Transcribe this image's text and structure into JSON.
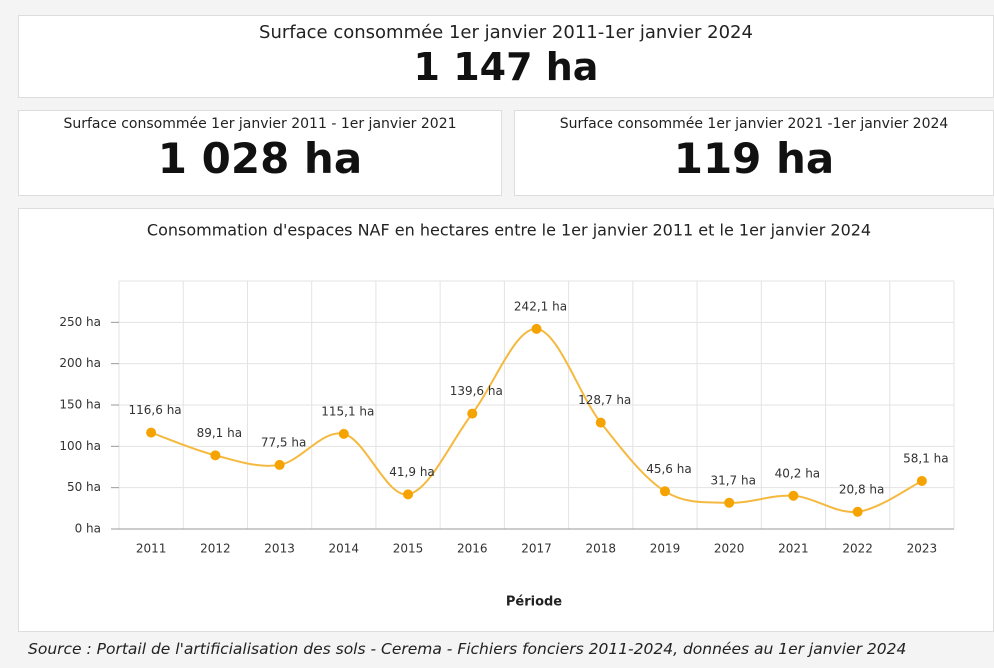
{
  "kpis": [
    {
      "label": "Surface consommée 1er janvier 2011-1er janvier 2024",
      "value": "1 147 ha"
    },
    {
      "label": "Surface consommée 1er janvier 2011 - 1er janvier 2021",
      "value": "1 028 ha"
    },
    {
      "label": "Surface consommée 1er janvier 2021 -1er janvier 2024",
      "value": "119 ha"
    }
  ],
  "chart_data": {
    "type": "line",
    "title": "Consommation d'espaces NAF en hectares entre le 1er janvier 2011 et le 1er janvier 2024",
    "x_label": "Période",
    "categories": [
      "2011",
      "2012",
      "2013",
      "2014",
      "2015",
      "2016",
      "2017",
      "2018",
      "2019",
      "2020",
      "2021",
      "2022",
      "2023"
    ],
    "values": [
      116.6,
      89.1,
      77.5,
      115.1,
      41.9,
      139.6,
      242.1,
      128.7,
      45.6,
      31.7,
      40.2,
      20.8,
      58.1
    ],
    "value_labels": [
      "116,6 ha",
      "89,1 ha",
      "77,5 ha",
      "115,1 ha",
      "41,9 ha",
      "139,6 ha",
      "242,1 ha",
      "128,7 ha",
      "45,6 ha",
      "31,7 ha",
      "40,2 ha",
      "20,8 ha",
      "58,1 ha"
    ],
    "color": "#f5a300",
    "ylim": [
      0,
      300
    ],
    "yticks": [
      {
        "value": 0,
        "label": "0 ha"
      },
      {
        "value": 50,
        "label": "50 ha"
      },
      {
        "value": 100,
        "label": "100 ha"
      },
      {
        "value": 150,
        "label": "150 ha"
      },
      {
        "value": 200,
        "label": "200 ha"
      },
      {
        "value": 250,
        "label": "250 ha"
      }
    ],
    "grid": true
  },
  "source": "Source : Portail de l'artificialisation des sols - Cerema - Fichiers fonciers 2011-2024, données au 1er janvier 2024"
}
